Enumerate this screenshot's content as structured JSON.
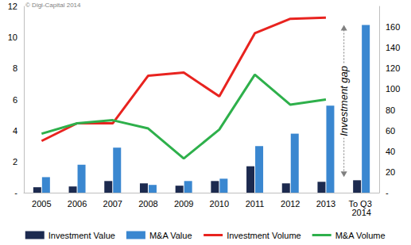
{
  "chart_data": {
    "type": "bar",
    "categories": [
      "2005",
      "2006",
      "2007",
      "2008",
      "2009",
      "2010",
      "2011",
      "2012",
      "2013",
      "To Q3 2014"
    ],
    "series": [
      {
        "name": "Investment Value",
        "type": "bar",
        "color": "#1c2a4f",
        "values": [
          0.35,
          0.4,
          0.75,
          0.6,
          0.45,
          0.75,
          1.7,
          0.6,
          0.7,
          0.8
        ]
      },
      {
        "name": "M&A Value",
        "type": "bar",
        "color": "#3a87d0",
        "values": [
          1.0,
          1.8,
          2.9,
          0.5,
          0.75,
          0.9,
          3.0,
          3.8,
          5.6,
          10.8
        ]
      },
      {
        "name": "Investment Volume",
        "type": "line",
        "axis": "y2",
        "color": "#e8231f",
        "values": [
          50,
          67,
          67,
          113,
          116,
          93,
          154,
          168,
          169,
          null
        ]
      },
      {
        "name": "M&A Volume",
        "type": "line",
        "axis": "y2",
        "color": "#2eb04b",
        "values": [
          57,
          67,
          70,
          62,
          33,
          61,
          114,
          85,
          90,
          null
        ]
      }
    ],
    "ylim": [
      0,
      12
    ],
    "yticks": [
      {
        "value": 0,
        "label": "-"
      },
      2,
      4,
      6,
      8,
      10,
      12
    ],
    "y2lim": [
      0,
      180
    ],
    "y2ticks": [
      {
        "value": 0,
        "label": "-"
      },
      20,
      40,
      60,
      80,
      100,
      120,
      140,
      160
    ],
    "annotations": [
      "© Digi-Capital 2014",
      "Investment gap"
    ],
    "legend": "bottom",
    "grid": false
  }
}
